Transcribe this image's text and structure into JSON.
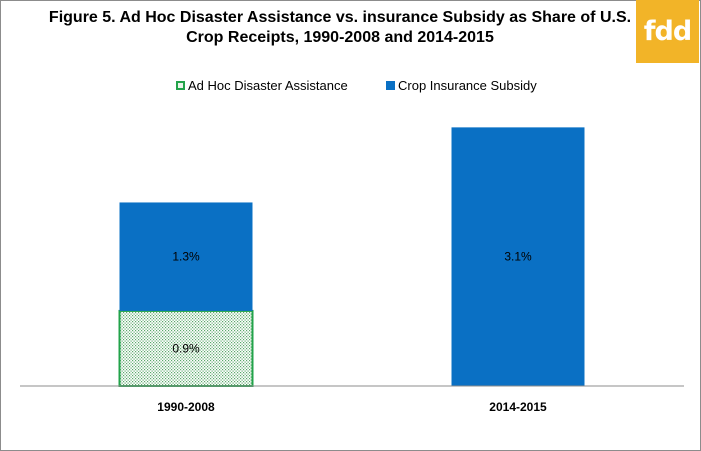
{
  "chart_data": {
    "type": "bar",
    "stacked": true,
    "title": "Figure 5. Ad Hoc Disaster Assistance vs. insurance Subsidy as Share of U.S. Crop Receipts, 1990-2008 and 2014-2015",
    "categories": [
      "1990-2008",
      "2014-2015"
    ],
    "series": [
      {
        "name": "Ad Hoc Disaster Assistance",
        "values": [
          0.9,
          0
        ],
        "labels": [
          "0.9%",
          ""
        ],
        "color": "#22a34a",
        "fill": "dotted"
      },
      {
        "name": "Crop Insurance Subsidy",
        "values": [
          1.3,
          3.1
        ],
        "labels": [
          "1.3%",
          "3.1%"
        ],
        "color": "#0a70c4",
        "fill": "solid"
      }
    ],
    "ylim": [
      0,
      3.5
    ],
    "grid": false,
    "legend": "top-center"
  },
  "logo": {
    "text": "fdd",
    "color": "#f2b428"
  }
}
